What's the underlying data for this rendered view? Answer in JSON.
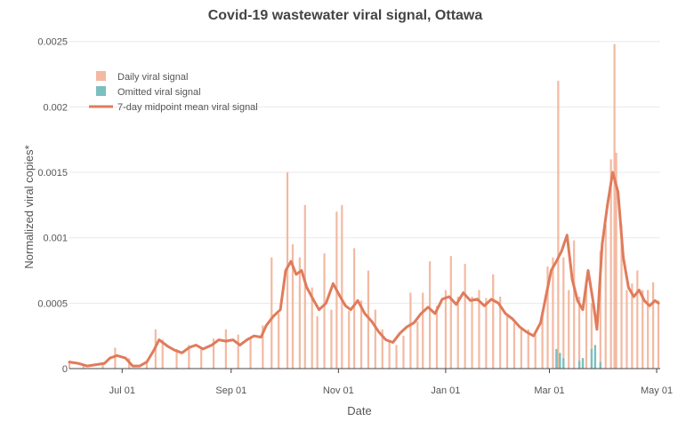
{
  "chart_data": {
    "type": "bar",
    "title": "Covid-19 wastewater viral signal, Ottawa",
    "xlabel": "Date",
    "ylabel": "Normalized viral copies*",
    "ylim": [
      0,
      0.0026
    ],
    "xlim": [
      "2021-06-01",
      "2022-05-03"
    ],
    "grid": true,
    "legend_position": "top-left",
    "legend": [
      {
        "name": "Daily viral signal",
        "color": "#f3b9a1",
        "kind": "bar"
      },
      {
        "name": "Omitted viral signal",
        "color": "#7bbfbf",
        "kind": "bar"
      },
      {
        "name": "7-day midpoint mean viral signal",
        "color": "#e07b5b",
        "kind": "line"
      }
    ],
    "x_ticks": [
      {
        "label": "Jul 01",
        "date": "2021-07-01"
      },
      {
        "label": "Sep 01",
        "date": "2021-09-01"
      },
      {
        "label": "Nov 01",
        "date": "2021-11-01"
      },
      {
        "label": "Jan 01",
        "date": "2022-01-01"
      },
      {
        "label": "Mar 01",
        "date": "2022-03-01"
      },
      {
        "label": "May 01",
        "date": "2022-05-01"
      }
    ],
    "y_ticks": [
      {
        "label": "0",
        "value": 0
      },
      {
        "label": "0.0005",
        "value": 0.0005
      },
      {
        "label": "0.001",
        "value": 0.001
      },
      {
        "label": "0.0015",
        "value": 0.0015
      },
      {
        "label": "0.002",
        "value": 0.002
      },
      {
        "label": "0.0025",
        "value": 0.0025
      }
    ],
    "series": [
      {
        "name": "7-day midpoint mean viral signal",
        "type": "line",
        "points": [
          [
            "2021-06-01",
            5e-05
          ],
          [
            "2021-06-06",
            4e-05
          ],
          [
            "2021-06-11",
            2e-05
          ],
          [
            "2021-06-16",
            3e-05
          ],
          [
            "2021-06-21",
            4e-05
          ],
          [
            "2021-06-24",
            8e-05
          ],
          [
            "2021-06-28",
            0.0001
          ],
          [
            "2021-07-03",
            8e-05
          ],
          [
            "2021-07-07",
            2e-05
          ],
          [
            "2021-07-11",
            2e-05
          ],
          [
            "2021-07-15",
            5e-05
          ],
          [
            "2021-07-19",
            0.00014
          ],
          [
            "2021-07-22",
            0.00022
          ],
          [
            "2021-07-27",
            0.00017
          ],
          [
            "2021-07-31",
            0.00014
          ],
          [
            "2021-08-04",
            0.00012
          ],
          [
            "2021-08-08",
            0.00016
          ],
          [
            "2021-08-12",
            0.00018
          ],
          [
            "2021-08-16",
            0.00015
          ],
          [
            "2021-08-21",
            0.00018
          ],
          [
            "2021-08-25",
            0.00022
          ],
          [
            "2021-08-29",
            0.00021
          ],
          [
            "2021-09-02",
            0.00022
          ],
          [
            "2021-09-06",
            0.00018
          ],
          [
            "2021-09-10",
            0.00022
          ],
          [
            "2021-09-14",
            0.00025
          ],
          [
            "2021-09-18",
            0.00024
          ],
          [
            "2021-09-21",
            0.00033
          ],
          [
            "2021-09-25",
            0.0004
          ],
          [
            "2021-09-29",
            0.00045
          ],
          [
            "2021-10-02",
            0.00075
          ],
          [
            "2021-10-05",
            0.00082
          ],
          [
            "2021-10-08",
            0.00072
          ],
          [
            "2021-10-11",
            0.00075
          ],
          [
            "2021-10-14",
            0.00062
          ],
          [
            "2021-10-18",
            0.00052
          ],
          [
            "2021-10-21",
            0.00045
          ],
          [
            "2021-10-25",
            0.0005
          ],
          [
            "2021-10-29",
            0.00065
          ],
          [
            "2021-11-02",
            0.00055
          ],
          [
            "2021-11-05",
            0.00048
          ],
          [
            "2021-11-08",
            0.00045
          ],
          [
            "2021-11-12",
            0.00052
          ],
          [
            "2021-11-16",
            0.00042
          ],
          [
            "2021-11-20",
            0.00036
          ],
          [
            "2021-11-24",
            0.00028
          ],
          [
            "2021-11-28",
            0.00022
          ],
          [
            "2021-12-02",
            0.0002
          ],
          [
            "2021-12-06",
            0.00027
          ],
          [
            "2021-12-10",
            0.00032
          ],
          [
            "2021-12-14",
            0.00035
          ],
          [
            "2021-12-18",
            0.00042
          ],
          [
            "2021-12-22",
            0.00047
          ],
          [
            "2021-12-26",
            0.00042
          ],
          [
            "2021-12-30",
            0.00053
          ],
          [
            "2022-01-03",
            0.00055
          ],
          [
            "2022-01-07",
            0.00049
          ],
          [
            "2022-01-11",
            0.00058
          ],
          [
            "2022-01-15",
            0.00052
          ],
          [
            "2022-01-19",
            0.00053
          ],
          [
            "2022-01-23",
            0.00048
          ],
          [
            "2022-01-27",
            0.00053
          ],
          [
            "2022-01-31",
            0.0005
          ],
          [
            "2022-02-04",
            0.00042
          ],
          [
            "2022-02-08",
            0.00038
          ],
          [
            "2022-02-12",
            0.00032
          ],
          [
            "2022-02-16",
            0.00028
          ],
          [
            "2022-02-20",
            0.00025
          ],
          [
            "2022-02-24",
            0.00035
          ],
          [
            "2022-02-27",
            0.00055
          ],
          [
            "2022-03-02",
            0.00075
          ],
          [
            "2022-03-05",
            0.00082
          ],
          [
            "2022-03-08",
            0.0009
          ],
          [
            "2022-03-11",
            0.00102
          ],
          [
            "2022-03-14",
            0.00068
          ],
          [
            "2022-03-17",
            0.00052
          ],
          [
            "2022-03-20",
            0.00045
          ],
          [
            "2022-03-23",
            0.00075
          ],
          [
            "2022-03-26",
            0.0005
          ],
          [
            "2022-03-28",
            0.0003
          ],
          [
            "2022-03-31",
            0.00095
          ],
          [
            "2022-04-03",
            0.00125
          ],
          [
            "2022-04-06",
            0.0015
          ],
          [
            "2022-04-09",
            0.00135
          ],
          [
            "2022-04-12",
            0.00085
          ],
          [
            "2022-04-15",
            0.00062
          ],
          [
            "2022-04-18",
            0.00055
          ],
          [
            "2022-04-21",
            0.0006
          ],
          [
            "2022-04-24",
            0.00052
          ],
          [
            "2022-04-27",
            0.00048
          ],
          [
            "2022-04-30",
            0.00052
          ],
          [
            "2022-05-02",
            0.0005
          ]
        ]
      },
      {
        "name": "Daily viral signal",
        "type": "bar",
        "points": [
          [
            "2021-06-01",
            6e-05
          ],
          [
            "2021-06-09",
            3e-05
          ],
          [
            "2021-06-20",
            5e-05
          ],
          [
            "2021-06-27",
            0.00016
          ],
          [
            "2021-07-05",
            8e-05
          ],
          [
            "2021-07-15",
            6e-05
          ],
          [
            "2021-07-20",
            0.0003
          ],
          [
            "2021-07-24",
            0.00022
          ],
          [
            "2021-08-01",
            0.00015
          ],
          [
            "2021-08-08",
            0.00018
          ],
          [
            "2021-08-15",
            0.00015
          ],
          [
            "2021-08-22",
            0.00023
          ],
          [
            "2021-08-29",
            0.0003
          ],
          [
            "2021-09-05",
            0.00026
          ],
          [
            "2021-09-12",
            0.00024
          ],
          [
            "2021-09-19",
            0.00033
          ],
          [
            "2021-09-24",
            0.00085
          ],
          [
            "2021-09-28",
            0.00042
          ],
          [
            "2021-10-03",
            0.0015
          ],
          [
            "2021-10-06",
            0.00095
          ],
          [
            "2021-10-10",
            0.00085
          ],
          [
            "2021-10-13",
            0.00125
          ],
          [
            "2021-10-17",
            0.00062
          ],
          [
            "2021-10-20",
            0.0004
          ],
          [
            "2021-10-24",
            0.00088
          ],
          [
            "2021-10-28",
            0.00045
          ],
          [
            "2021-10-31",
            0.0012
          ],
          [
            "2021-11-03",
            0.00125
          ],
          [
            "2021-11-07",
            0.00044
          ],
          [
            "2021-11-10",
            0.00092
          ],
          [
            "2021-11-14",
            0.00052
          ],
          [
            "2021-11-18",
            0.00075
          ],
          [
            "2021-11-22",
            0.00045
          ],
          [
            "2021-11-26",
            0.0003
          ],
          [
            "2021-11-30",
            0.00022
          ],
          [
            "2021-12-04",
            0.00018
          ],
          [
            "2021-12-08",
            0.00025
          ],
          [
            "2021-12-12",
            0.00058
          ],
          [
            "2021-12-16",
            0.00036
          ],
          [
            "2021-12-19",
            0.00058
          ],
          [
            "2021-12-23",
            0.00082
          ],
          [
            "2021-12-27",
            0.00048
          ],
          [
            "2022-01-01",
            0.0006
          ],
          [
            "2022-01-04",
            0.00086
          ],
          [
            "2022-01-08",
            0.00055
          ],
          [
            "2022-01-12",
            0.0008
          ],
          [
            "2022-01-16",
            0.00055
          ],
          [
            "2022-01-20",
            0.0006
          ],
          [
            "2022-01-24",
            0.00054
          ],
          [
            "2022-01-28",
            0.00072
          ],
          [
            "2022-02-01",
            0.00055
          ],
          [
            "2022-02-05",
            0.00042
          ],
          [
            "2022-02-09",
            0.00035
          ],
          [
            "2022-02-13",
            0.00032
          ],
          [
            "2022-02-17",
            0.0003
          ],
          [
            "2022-02-21",
            0.00026
          ],
          [
            "2022-02-25",
            0.00042
          ],
          [
            "2022-02-28",
            0.00078
          ],
          [
            "2022-03-03",
            0.00085
          ],
          [
            "2022-03-06",
            0.0022
          ],
          [
            "2022-03-09",
            0.00085
          ],
          [
            "2022-03-12",
            0.0006
          ],
          [
            "2022-03-15",
            0.00098
          ],
          [
            "2022-03-18",
            0.00055
          ],
          [
            "2022-03-22",
            0.00068
          ],
          [
            "2022-03-25",
            0.0005
          ],
          [
            "2022-03-30",
            0.0009
          ],
          [
            "2022-04-02",
            0.0011
          ],
          [
            "2022-04-05",
            0.0016
          ],
          [
            "2022-04-07",
            0.00248
          ],
          [
            "2022-04-08",
            0.00165
          ],
          [
            "2022-04-11",
            0.0011
          ],
          [
            "2022-04-14",
            0.0006
          ],
          [
            "2022-04-17",
            0.00065
          ],
          [
            "2022-04-20",
            0.00075
          ],
          [
            "2022-04-23",
            0.0006
          ],
          [
            "2022-04-26",
            0.0006
          ],
          [
            "2022-04-29",
            0.00066
          ],
          [
            "2022-05-02",
            0.00052
          ]
        ]
      },
      {
        "name": "Omitted viral signal",
        "type": "bar",
        "points": [
          [
            "2022-03-05",
            0.00015
          ],
          [
            "2022-03-07",
            0.00012
          ],
          [
            "2022-03-09",
            8e-05
          ],
          [
            "2022-03-18",
            6e-05
          ],
          [
            "2022-03-20",
            8e-05
          ],
          [
            "2022-03-25",
            0.00015
          ],
          [
            "2022-03-27",
            0.00018
          ],
          [
            "2022-03-30",
            5e-05
          ]
        ]
      }
    ]
  }
}
